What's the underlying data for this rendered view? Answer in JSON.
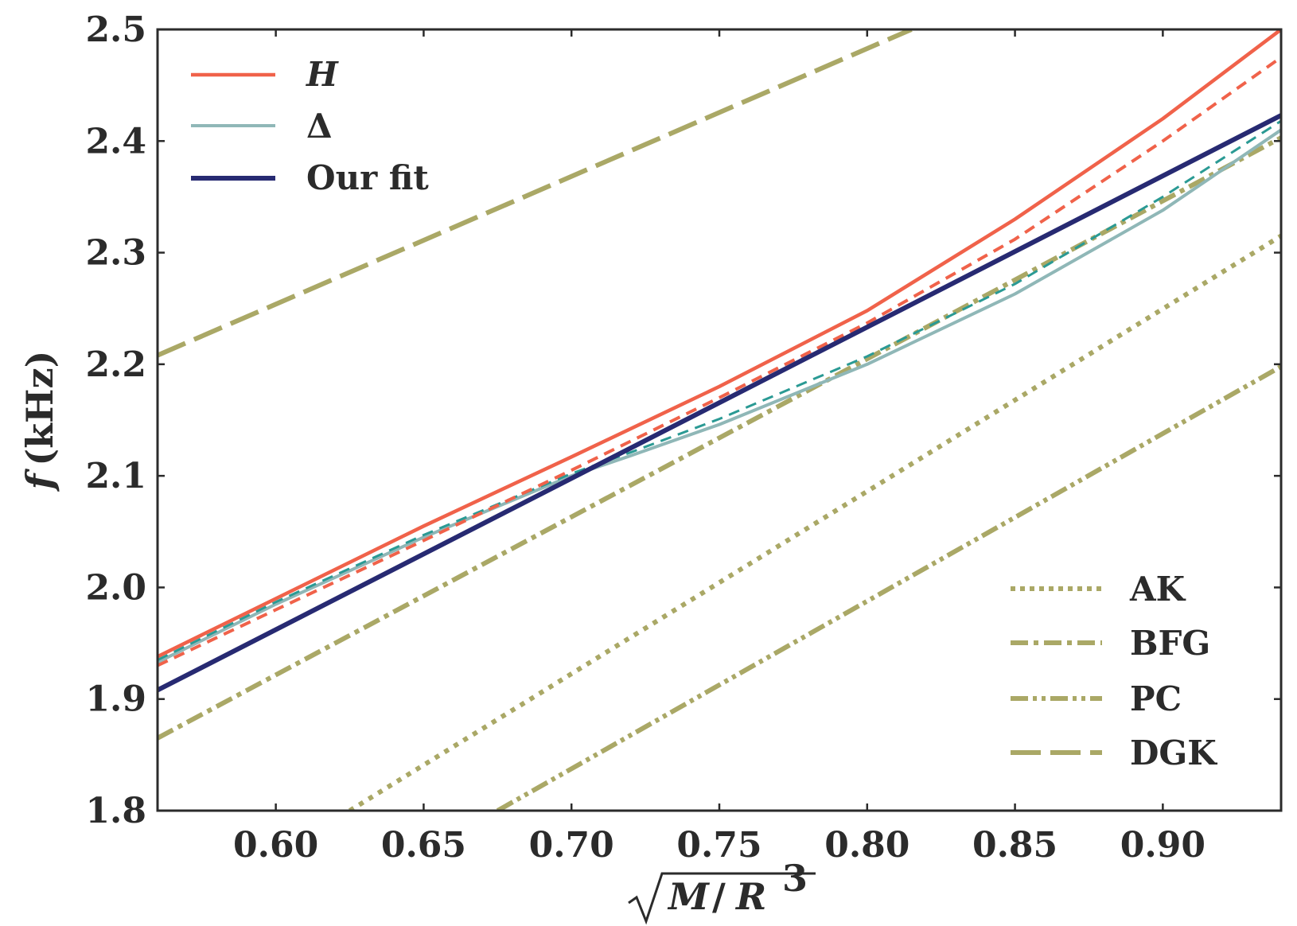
{
  "chart_data": {
    "type": "line",
    "title": "",
    "xlabel": "√M/R³",
    "xlabel_parts": {
      "radicand_M": "M",
      "slash": "/",
      "radicand_R": "R",
      "exponent": "3"
    },
    "ylabel": "f (kHz)",
    "ylabel_parts": {
      "symbol": "f",
      "unit": "(kHz)"
    },
    "xlim": [
      0.56,
      0.94
    ],
    "ylim": [
      1.8,
      2.5
    ],
    "xticks": [
      "0.60",
      "0.65",
      "0.70",
      "0.75",
      "0.80",
      "0.85",
      "0.90"
    ],
    "yticks": [
      "1.8",
      "1.9",
      "2.0",
      "2.1",
      "2.2",
      "2.3",
      "2.4",
      "2.5"
    ],
    "grid": false,
    "colors": {
      "H": "#f0624a",
      "Delta": "#8fb7b7",
      "Delta_dashed": "#2a9a94",
      "fit": "#272a72",
      "empirical": "#aaa866",
      "axes": "#2b2b2b"
    },
    "legend_main": {
      "position": "top-left",
      "entries": [
        {
          "label": "H",
          "style": "solid",
          "color": "#f0624a",
          "italic": true
        },
        {
          "label": "Δ",
          "style": "solid",
          "color": "#8fb7b7",
          "italic": false
        },
        {
          "label": "Our fit",
          "style": "solid",
          "color": "#272a72",
          "italic": false
        }
      ]
    },
    "legend_empirical": {
      "position": "bottom-right",
      "entries": [
        {
          "label": "AK",
          "style": "dotted"
        },
        {
          "label": "BFG",
          "style": "dashdot"
        },
        {
          "label": "PC",
          "style": "dashdotdot"
        },
        {
          "label": "DGK",
          "style": "longdash"
        }
      ]
    },
    "series": [
      {
        "name": "H",
        "style": "solid",
        "color": "#f0624a",
        "x": [
          0.56,
          0.6,
          0.65,
          0.7,
          0.75,
          0.8,
          0.85,
          0.9,
          0.94
        ],
        "y": [
          1.938,
          1.99,
          2.055,
          2.117,
          2.18,
          2.248,
          2.33,
          2.42,
          2.5
        ]
      },
      {
        "name": "H (dashed)",
        "style": "dashed",
        "color": "#f0624a",
        "x": [
          0.56,
          0.6,
          0.65,
          0.7,
          0.75,
          0.8,
          0.85,
          0.9,
          0.94
        ],
        "y": [
          1.93,
          1.98,
          2.042,
          2.105,
          2.17,
          2.237,
          2.312,
          2.4,
          2.475
        ]
      },
      {
        "name": "Δ",
        "style": "solid",
        "color": "#8fb7b7",
        "x": [
          0.56,
          0.6,
          0.65,
          0.7,
          0.72,
          0.75,
          0.8,
          0.85,
          0.9,
          0.94
        ],
        "y": [
          1.933,
          1.985,
          2.045,
          2.1,
          2.118,
          2.146,
          2.2,
          2.263,
          2.338,
          2.41
        ]
      },
      {
        "name": "Δ (dashed)",
        "style": "dashed",
        "color": "#2a9a94",
        "x": [
          0.56,
          0.6,
          0.65,
          0.7,
          0.72,
          0.75,
          0.8,
          0.85,
          0.9,
          0.94
        ],
        "y": [
          1.935,
          1.987,
          2.047,
          2.102,
          2.121,
          2.151,
          2.207,
          2.272,
          2.35,
          2.418
        ]
      },
      {
        "name": "Our fit",
        "style": "solid",
        "color": "#272a72",
        "x": [
          0.56,
          0.94
        ],
        "y": [
          1.908,
          2.423
        ]
      },
      {
        "name": "AK",
        "style": "dotted",
        "color": "#aaa866",
        "x": [
          0.625,
          0.94
        ],
        "y": [
          1.8,
          2.315
        ]
      },
      {
        "name": "BFG",
        "style": "dashdot",
        "color": "#aaa866",
        "x": [
          0.56,
          0.94
        ],
        "y": [
          1.865,
          2.403
        ]
      },
      {
        "name": "PC",
        "style": "dashdotdot",
        "color": "#aaa866",
        "x": [
          0.675,
          0.94
        ],
        "y": [
          1.8,
          2.198
        ]
      },
      {
        "name": "DGK",
        "style": "longdash",
        "color": "#aaa866",
        "x": [
          0.56,
          0.815
        ],
        "y": [
          2.208,
          2.5
        ]
      }
    ]
  }
}
